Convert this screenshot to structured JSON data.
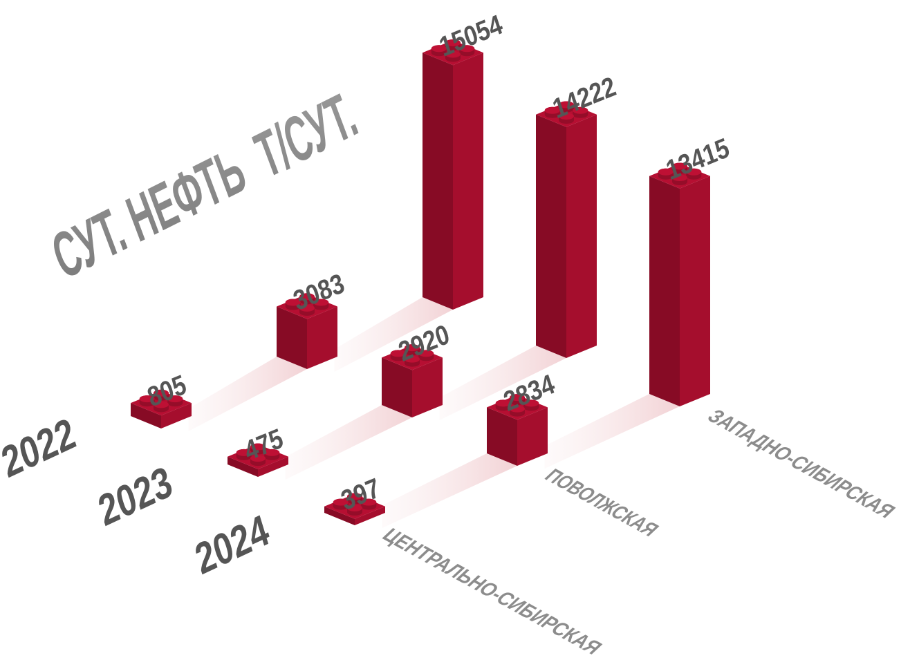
{
  "chart_data": {
    "type": "bar3d",
    "title": "СУТ. НЕФТЬ  Т/СУТ.",
    "categories": [
      "ЦЕНТРАЛЬНО-СИБИРСКАЯ",
      "ПОВОЛЖСКАЯ",
      "ЗАПАДНО-СИБИРСКАЯ"
    ],
    "series": [
      {
        "name": "2022",
        "color": "#a50e2d",
        "values": [
          805,
          3083,
          15054
        ]
      },
      {
        "name": "2023",
        "color": "#a50e2d",
        "values": [
          475,
          2920,
          14222
        ]
      },
      {
        "name": "2024",
        "color": "#a50e2d",
        "values": [
          397,
          2834,
          13415
        ]
      }
    ]
  }
}
